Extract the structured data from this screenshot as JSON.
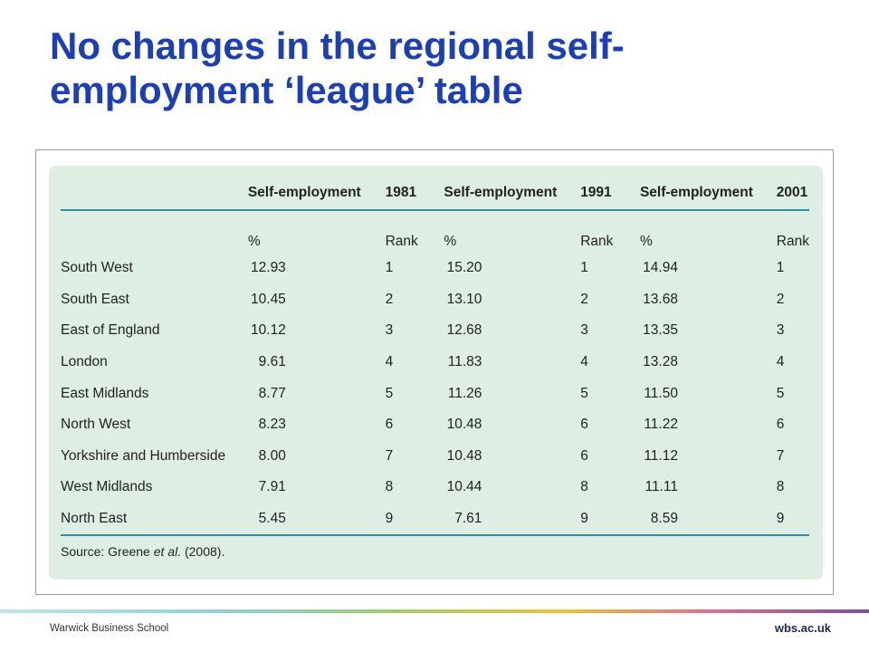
{
  "slide": {
    "title": "No changes in the regional self-employment ‘league’ table"
  },
  "table": {
    "headers": [
      "",
      "Self-employment",
      "1981",
      "Self-employment",
      "1991",
      "Self-employment",
      "2001"
    ],
    "subheaders": [
      "",
      "%",
      "Rank",
      "%",
      "Rank",
      "%",
      "Rank"
    ],
    "rows": [
      [
        "South West",
        "12.93",
        "1",
        "15.20",
        "1",
        "14.94",
        "1"
      ],
      [
        "South East",
        "10.45",
        "2",
        "13.10",
        "2",
        "13.68",
        "2"
      ],
      [
        "East of England",
        "10.12",
        "3",
        "12.68",
        "3",
        "13.35",
        "3"
      ],
      [
        "London",
        "9.61",
        "4",
        "11.83",
        "4",
        "13.28",
        "4"
      ],
      [
        "East Midlands",
        "8.77",
        "5",
        "11.26",
        "5",
        "11.50",
        "5"
      ],
      [
        "North West",
        "8.23",
        "6",
        "10.48",
        "6",
        "11.22",
        "6"
      ],
      [
        "Yorkshire and Humberside",
        "8.00",
        "7",
        "10.48",
        "6",
        "11.12",
        "7"
      ],
      [
        "West Midlands",
        "7.91",
        "8",
        "10.44",
        "8",
        "11.11",
        "8"
      ],
      [
        "North East",
        "5.45",
        "9",
        "7.61",
        "9",
        "8.59",
        "9"
      ]
    ],
    "source_prefix": "Source: Greene ",
    "source_italic": "et al.",
    "source_suffix": " (2008)."
  },
  "footer": {
    "left": "Warwick Business School",
    "right": "wbs.ac.uk"
  },
  "colors": {
    "title": "#1a3fb8",
    "panel_bg": "#dfeee2",
    "rule": "#2a8ea8"
  }
}
